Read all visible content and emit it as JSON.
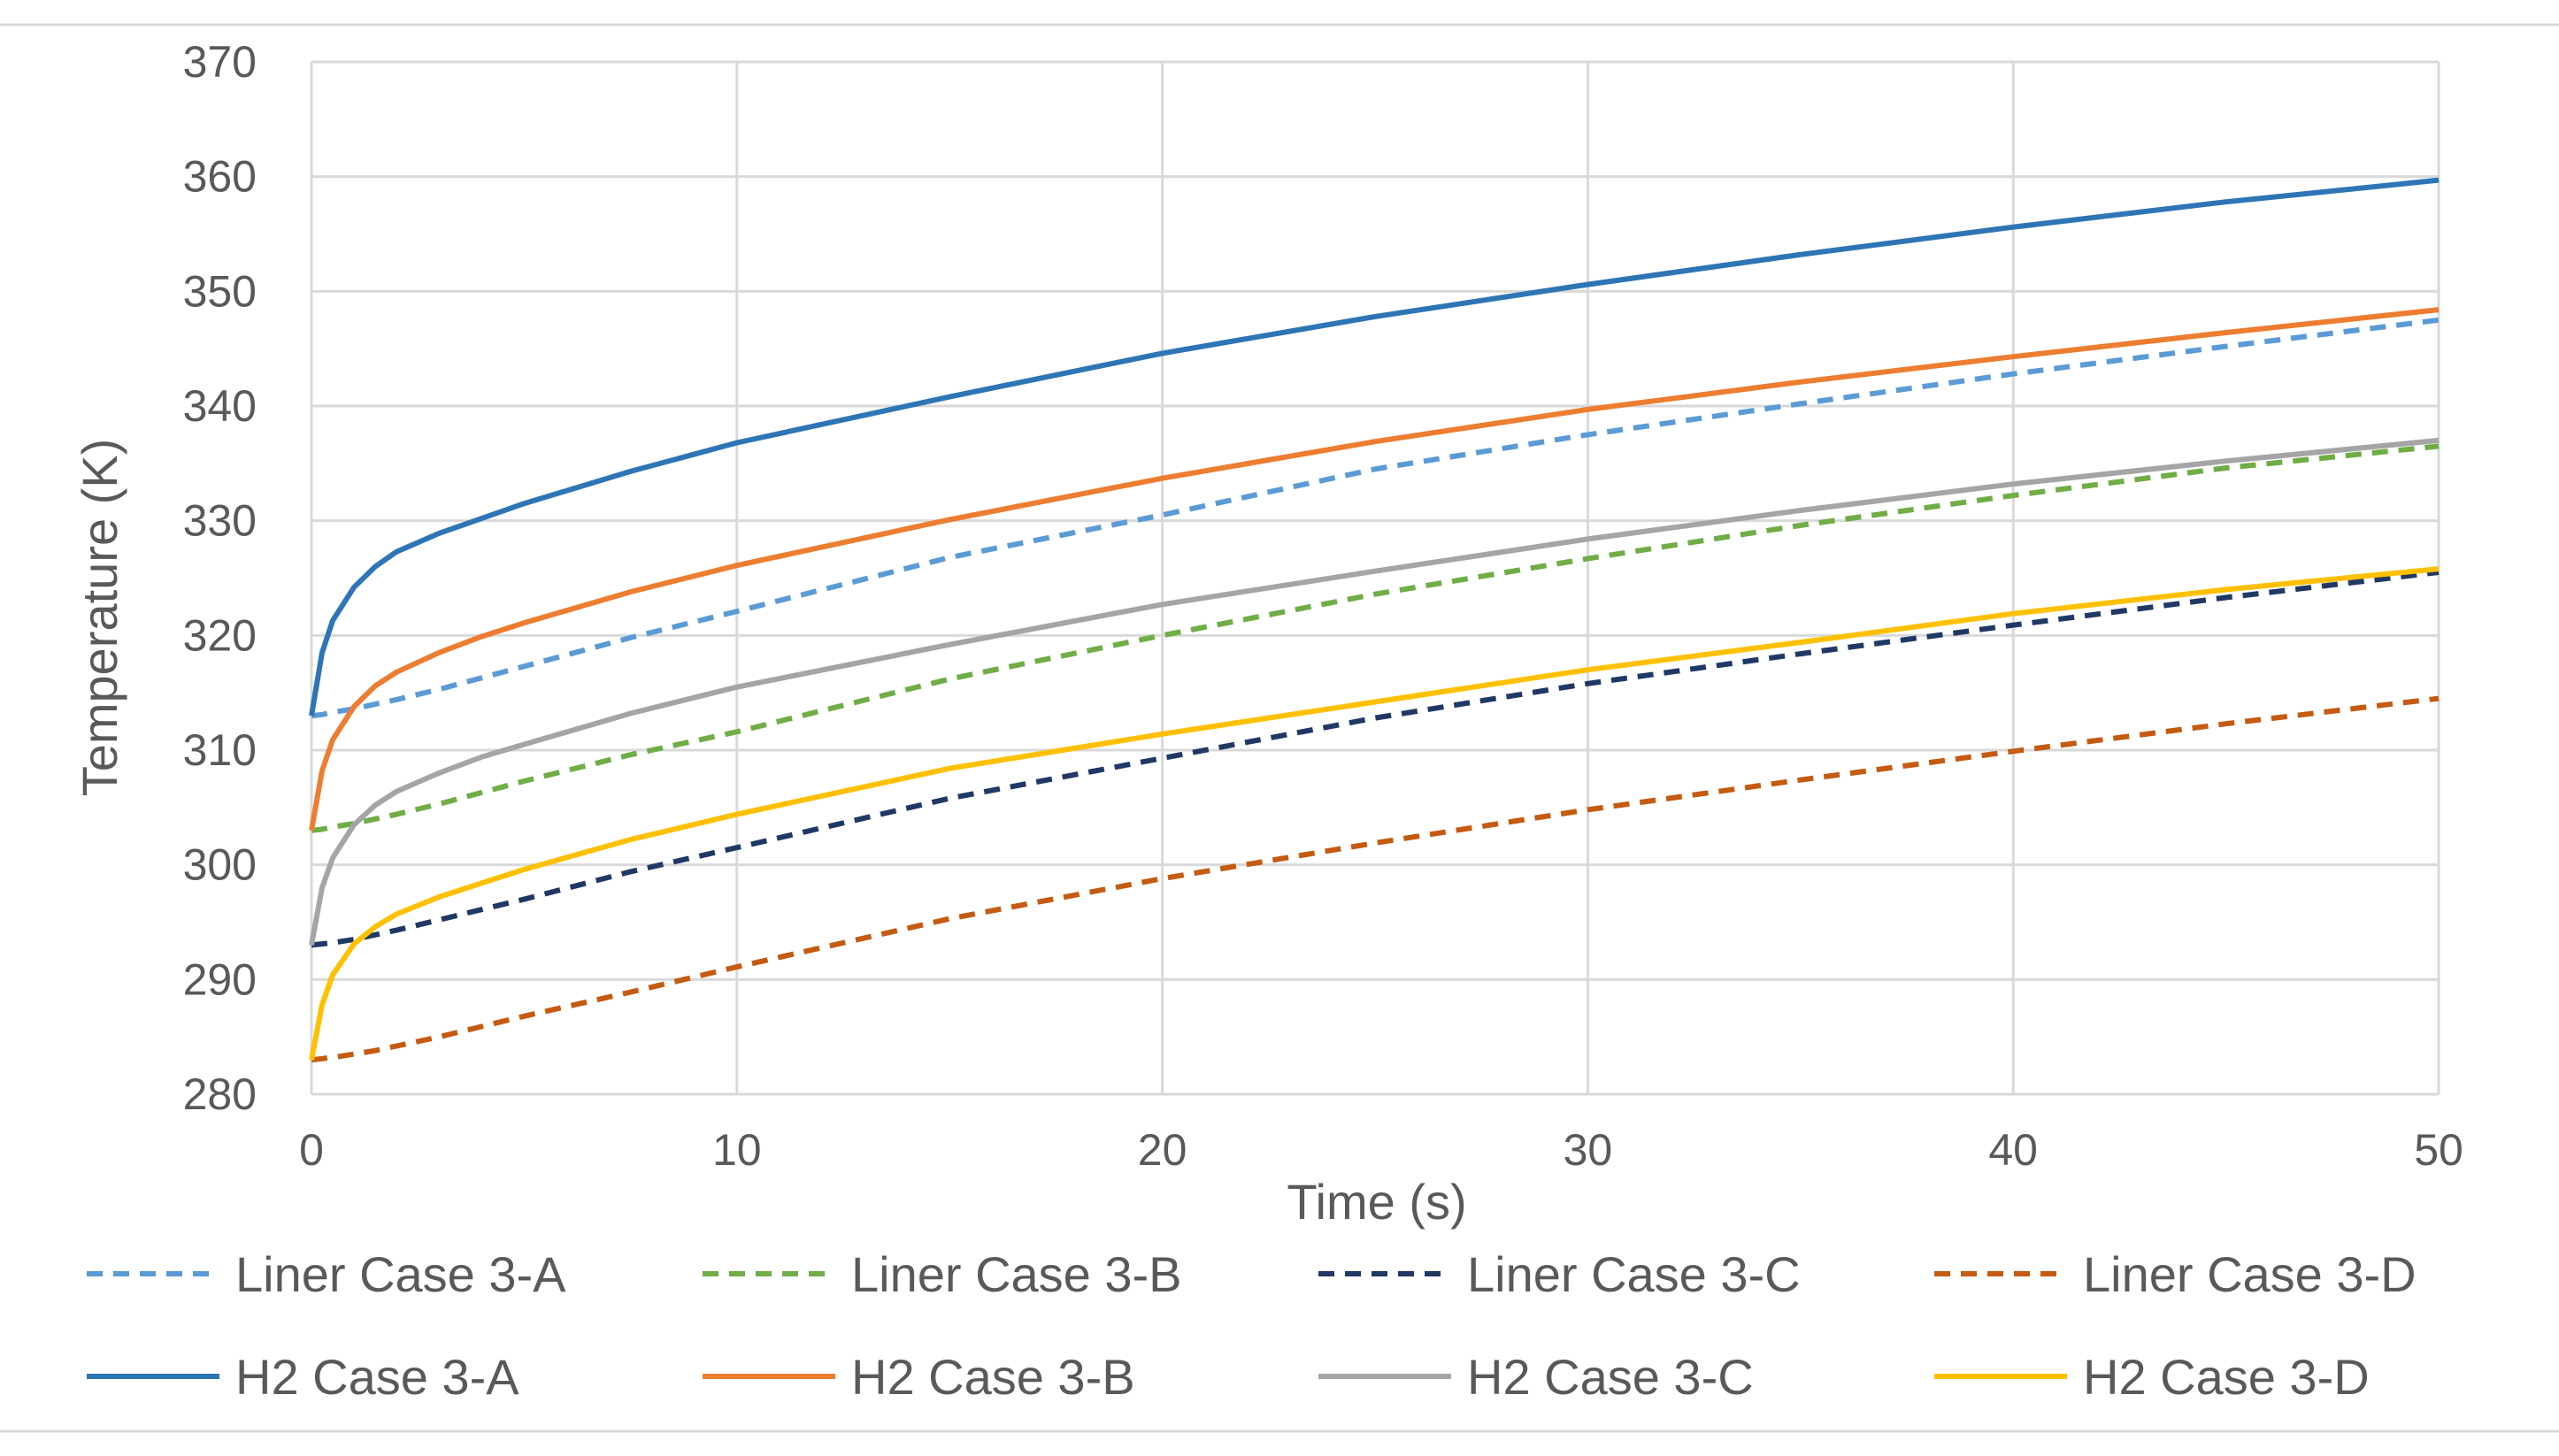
{
  "chart_data": {
    "type": "line",
    "title": "",
    "xlabel": "Time (s)",
    "ylabel": "Temperature (K)",
    "xlim": [
      0,
      50
    ],
    "ylim": [
      280,
      370
    ],
    "xticks": [
      0,
      10,
      20,
      30,
      40,
      50
    ],
    "yticks": [
      280,
      290,
      300,
      310,
      320,
      330,
      340,
      350,
      360,
      370
    ],
    "grid": "vertical and horizontal",
    "legend": "bottom",
    "x": [
      0,
      0.25,
      0.5,
      1,
      1.5,
      2,
      3,
      4,
      5,
      7.5,
      10,
      15,
      20,
      25,
      30,
      35,
      40,
      45,
      50
    ],
    "series": [
      {
        "name": "Liner Case 3-A",
        "color": "#5B9BD5",
        "dash": "dashed",
        "values": [
          313,
          313.1,
          313.3,
          313.6,
          314.0,
          314.4,
          315.3,
          316.3,
          317.3,
          319.8,
          322.1,
          326.8,
          330.5,
          334.5,
          337.5,
          340.2,
          342.8,
          345.2,
          347.5
        ]
      },
      {
        "name": "Liner Case 3-B",
        "color": "#70AD47",
        "dash": "dashed",
        "values": [
          303,
          303.1,
          303.3,
          303.6,
          304.0,
          304.4,
          305.3,
          306.3,
          307.3,
          309.6,
          311.6,
          316.2,
          320.0,
          323.6,
          326.7,
          329.6,
          332.2,
          334.6,
          336.5
        ]
      },
      {
        "name": "Liner Case 3-C",
        "color": "#203864",
        "dash": "dashed",
        "values": [
          293,
          293.1,
          293.2,
          293.5,
          293.9,
          294.3,
          295.2,
          296.1,
          297.0,
          299.4,
          301.5,
          305.8,
          309.3,
          312.8,
          315.8,
          318.4,
          320.9,
          323.3,
          325.5
        ]
      },
      {
        "name": "Liner Case 3-D",
        "color": "#C55A11",
        "dash": "dashed",
        "values": [
          283,
          283.1,
          283.2,
          283.5,
          283.8,
          284.2,
          285.0,
          285.9,
          286.8,
          288.9,
          291.1,
          295.3,
          298.8,
          301.9,
          304.8,
          307.4,
          309.9,
          312.3,
          314.5
        ]
      },
      {
        "name": "H2 Case 3-A",
        "color": "#2E75B6",
        "dash": "solid",
        "values": [
          313,
          318.5,
          321.3,
          324.2,
          326.0,
          327.3,
          328.9,
          330.2,
          331.5,
          334.3,
          336.8,
          340.8,
          344.6,
          347.8,
          350.6,
          353.2,
          355.6,
          357.8,
          359.7
        ]
      },
      {
        "name": "H2 Case 3-B",
        "color": "#ED7D31",
        "dash": "solid",
        "values": [
          303,
          308.2,
          310.9,
          313.8,
          315.6,
          316.8,
          318.5,
          319.9,
          321.1,
          323.8,
          326.1,
          330.1,
          333.7,
          336.9,
          339.7,
          342.1,
          344.3,
          346.4,
          348.4
        ]
      },
      {
        "name": "H2 Case 3-C",
        "color": "#A5A5A5",
        "dash": "solid",
        "values": [
          293,
          298.0,
          300.6,
          303.5,
          305.2,
          306.4,
          308.0,
          309.4,
          310.5,
          313.2,
          315.5,
          319.2,
          322.7,
          325.6,
          328.4,
          330.9,
          333.2,
          335.2,
          337.0
        ]
      },
      {
        "name": "H2 Case 3-D",
        "color": "#FFC000",
        "dash": "solid",
        "values": [
          283,
          287.8,
          290.4,
          293.1,
          294.6,
          295.7,
          297.2,
          298.4,
          299.6,
          302.2,
          304.4,
          308.4,
          311.4,
          314.2,
          317.0,
          319.4,
          321.9,
          324.0,
          325.8
        ]
      }
    ]
  }
}
